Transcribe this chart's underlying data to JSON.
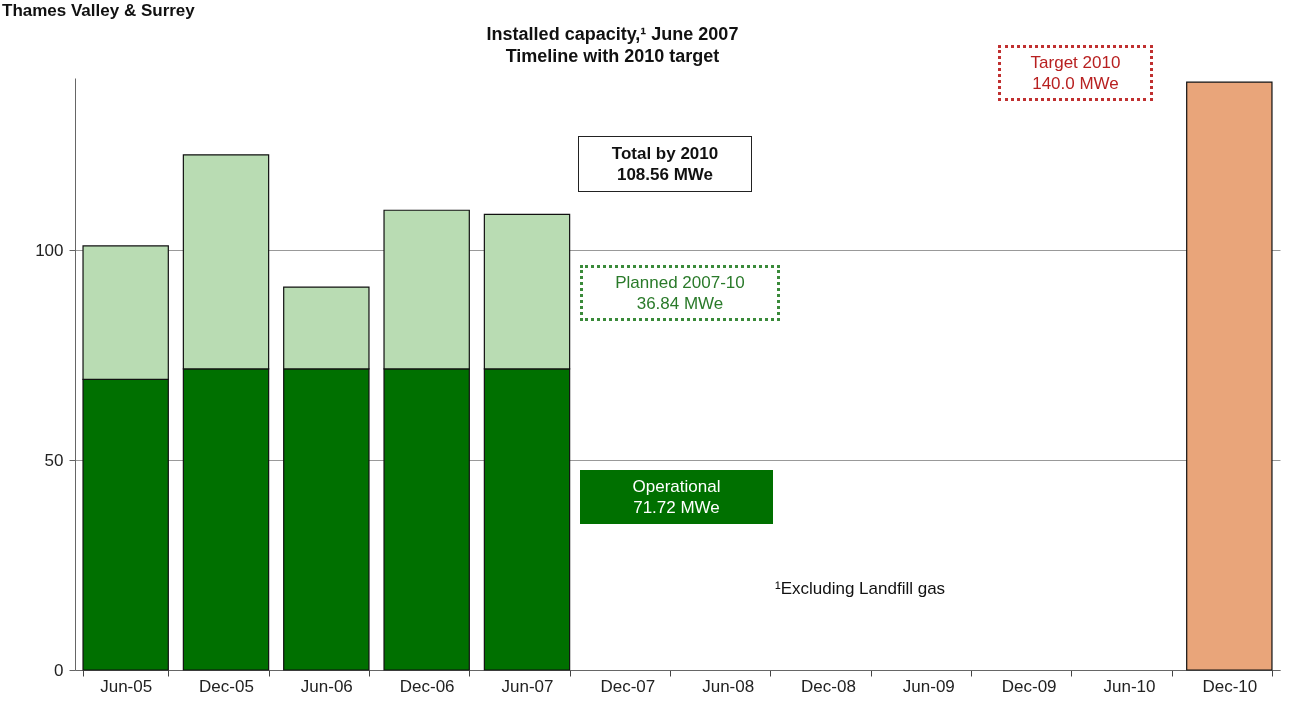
{
  "chart_data": {
    "type": "bar",
    "title": "Installed capacity,¹ June 2007",
    "subtitle": "Timeline with 2010 target",
    "categories": [
      "Jun-05",
      "Dec-05",
      "Jun-06",
      "Dec-06",
      "Jun-07",
      "Dec-07",
      "Jun-08",
      "Dec-08",
      "Jun-09",
      "Dec-09",
      "Jun-10",
      "Dec-10"
    ],
    "stacked": true,
    "series": [
      {
        "color": "#007000",
        "values": [
          69.2,
          71.7,
          71.7,
          71.7,
          71.7,
          null,
          null,
          null,
          null,
          null,
          null,
          null
        ]
      },
      {
        "color": "#b9dcb3",
        "values": [
          31.8,
          51,
          19.5,
          37.8,
          36.8,
          null,
          null,
          null,
          null,
          null,
          null,
          null
        ]
      },
      {
        "color": "#e9a57a",
        "values": [
          null,
          null,
          null,
          null,
          null,
          null,
          null,
          null,
          null,
          null,
          null,
          140
        ]
      }
    ],
    "ylim": [
      0,
      141
    ],
    "yticks": [
      0,
      50,
      100
    ],
    "grid": "y",
    "legend": false,
    "annotations": [
      "Thames Valley & Surrey",
      "Total by 2010\n108.56 MWe",
      "Planned 2007-10\n36.84 MWe",
      "Operational\n71.72 MWe",
      "¹Excluding Landfill gas",
      "Target 2010\n140.0 MWe"
    ]
  }
}
